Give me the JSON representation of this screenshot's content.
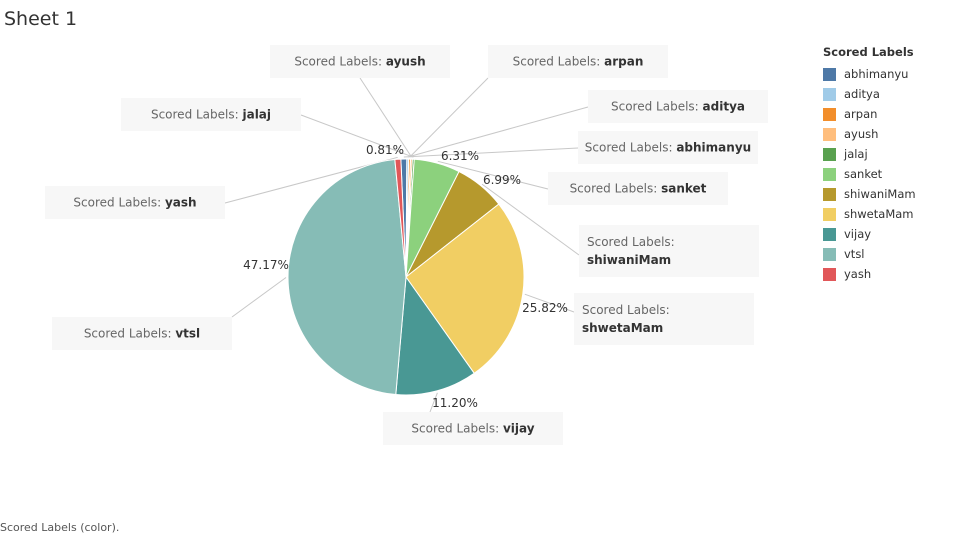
{
  "sheet": {
    "title": "Sheet 1",
    "footer": "Scored Labels (color)."
  },
  "legend": {
    "title": "Scored Labels",
    "items": [
      {
        "label": "abhimanyu",
        "color": "#4E79A7"
      },
      {
        "label": "aditya",
        "color": "#A0CBE8"
      },
      {
        "label": "arpan",
        "color": "#F28E2B"
      },
      {
        "label": "ayush",
        "color": "#FFBE7D"
      },
      {
        "label": "jalaj",
        "color": "#59A14F"
      },
      {
        "label": "sanket",
        "color": "#8CD17D"
      },
      {
        "label": "shiwaniMam",
        "color": "#B6992D"
      },
      {
        "label": "shwetaMam",
        "color": "#F1CE63"
      },
      {
        "label": "vijay",
        "color": "#499894"
      },
      {
        "label": "vtsl",
        "color": "#86BCB6"
      },
      {
        "label": "yash",
        "color": "#E15759"
      }
    ]
  },
  "chart_data": {
    "type": "pie",
    "title": "",
    "field": "Scored Labels",
    "tooltip_prefix": "Scored Labels:",
    "slices": [
      {
        "label": "abhimanyu",
        "value": 0.81,
        "pct_label": "0.81%",
        "color": "#4E79A7"
      },
      {
        "label": "aditya",
        "value": 0.25,
        "pct_label": "",
        "color": "#A0CBE8"
      },
      {
        "label": "arpan",
        "value": 0.25,
        "pct_label": "",
        "color": "#F28E2B"
      },
      {
        "label": "ayush",
        "value": 0.25,
        "pct_label": "",
        "color": "#FFBE7D"
      },
      {
        "label": "jalaj",
        "value": 0.25,
        "pct_label": "",
        "color": "#59A14F"
      },
      {
        "label": "sanket",
        "value": 6.31,
        "pct_label": "6.31%",
        "color": "#8CD17D"
      },
      {
        "label": "shiwaniMam",
        "value": 6.99,
        "pct_label": "6.99%",
        "color": "#B6992D"
      },
      {
        "label": "shwetaMam",
        "value": 25.82,
        "pct_label": "25.82%",
        "color": "#F1CE63"
      },
      {
        "label": "vijay",
        "value": 11.2,
        "pct_label": "11.20%",
        "color": "#499894"
      },
      {
        "label": "vtsl",
        "value": 47.17,
        "pct_label": "47.17%",
        "color": "#86BCB6"
      },
      {
        "label": "yash",
        "value": 0.81,
        "pct_label": "",
        "color": "#E15759"
      }
    ]
  }
}
